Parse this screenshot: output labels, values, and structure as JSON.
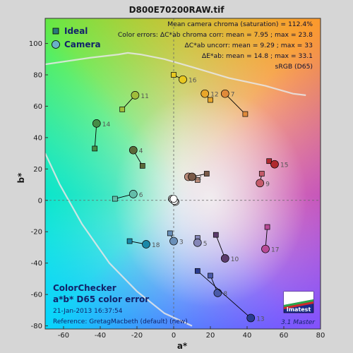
{
  "chart_data": {
    "type": "scatter",
    "title": "D800E70200RAW.tif",
    "xlabel": "a*",
    "ylabel": "b*",
    "xlim": [
      -70,
      80
    ],
    "ylim": [
      -82,
      116
    ],
    "xticks": [
      -60,
      -40,
      -20,
      0,
      20,
      40,
      60,
      80
    ],
    "yticks": [
      -80,
      -60,
      -40,
      -20,
      0,
      20,
      40,
      60,
      80,
      100
    ],
    "grid": false,
    "legend_position": "top-left",
    "series": [
      {
        "name": "Ideal",
        "marker": "square"
      },
      {
        "name": "Camera",
        "marker": "circle"
      }
    ],
    "patches": [
      {
        "id": "1",
        "ideal": [
          13,
          13
        ],
        "camera": [
          8,
          15
        ],
        "color": "#b88a78"
      },
      {
        "id": "2",
        "ideal": [
          18,
          17
        ],
        "camera": [
          10,
          15
        ],
        "color": "#7a5a48"
      },
      {
        "id": "3",
        "ideal": [
          -2,
          -21
        ],
        "camera": [
          0,
          -26
        ],
        "color": "#6a8fb8"
      },
      {
        "id": "4",
        "ideal": [
          -17,
          22
        ],
        "camera": [
          -22,
          32
        ],
        "color": "#5b6a3a"
      },
      {
        "id": "5",
        "ideal": [
          13,
          -24
        ],
        "camera": [
          13,
          -27
        ],
        "color": "#8586b8"
      },
      {
        "id": "6",
        "ideal": [
          -32,
          1
        ],
        "camera": [
          -22,
          4
        ],
        "color": "#63bda9"
      },
      {
        "id": "7",
        "ideal": [
          39,
          55
        ],
        "camera": [
          28,
          68
        ],
        "color": "#e08a3a"
      },
      {
        "id": "8",
        "ideal": [
          20,
          -48
        ],
        "camera": [
          24,
          -59
        ],
        "color": "#4a5aa8"
      },
      {
        "id": "9",
        "ideal": [
          48,
          17
        ],
        "camera": [
          47,
          11
        ],
        "color": "#c45a6a"
      },
      {
        "id": "10",
        "ideal": [
          23,
          -22
        ],
        "camera": [
          28,
          -37
        ],
        "color": "#5c3c6c"
      },
      {
        "id": "11",
        "ideal": [
          -28,
          58
        ],
        "camera": [
          -21,
          67
        ],
        "color": "#a0bd3a"
      },
      {
        "id": "12",
        "ideal": [
          20,
          64
        ],
        "camera": [
          17,
          68
        ],
        "color": "#e8a62a"
      },
      {
        "id": "13",
        "ideal": [
          13,
          -45
        ],
        "camera": [
          42,
          -75
        ],
        "color": "#2a3c90"
      },
      {
        "id": "14",
        "ideal": [
          -43,
          33
        ],
        "camera": [
          -42,
          49
        ],
        "color": "#468c46"
      },
      {
        "id": "15",
        "ideal": [
          52,
          25
        ],
        "camera": [
          55,
          23
        ],
        "color": "#b02a30"
      },
      {
        "id": "16",
        "ideal": [
          0,
          80
        ],
        "camera": [
          5,
          77
        ],
        "color": "#e8c820"
      },
      {
        "id": "17",
        "ideal": [
          51,
          -17
        ],
        "camera": [
          50,
          -31
        ],
        "color": "#b84a96"
      },
      {
        "id": "18",
        "ideal": [
          -24,
          -26
        ],
        "camera": [
          -15,
          -28
        ],
        "color": "#1a88a8"
      }
    ],
    "neutral_points": [
      [
        -1,
        1
      ],
      [
        0,
        0
      ],
      [
        1,
        -1
      ],
      [
        -0.5,
        0.5
      ],
      [
        0.5,
        -0.5
      ],
      [
        0,
        1
      ]
    ],
    "gamut_curves": [
      {
        "name": "sRGB boundary",
        "points": [
          [
            -80,
            85
          ],
          [
            -45,
            91
          ],
          [
            -30,
            93
          ],
          [
            -25,
            94
          ],
          [
            -18,
            93
          ],
          [
            -5,
            90
          ],
          [
            10,
            85
          ],
          [
            30,
            78
          ],
          [
            50,
            73
          ],
          [
            65,
            68
          ],
          [
            72,
            67
          ]
        ]
      },
      {
        "name": "sRGB boundary lower",
        "points": [
          [
            -70,
            30
          ],
          [
            -62,
            10
          ],
          [
            -50,
            -15
          ],
          [
            -35,
            -40
          ],
          [
            -20,
            -58
          ],
          [
            -5,
            -72
          ],
          [
            10,
            -80
          ]
        ]
      }
    ]
  },
  "stats": {
    "line1": "Mean camera chroma (saturation) = 112.4%",
    "line2": "Color errors: ΔC*ab chroma corr:  mean = 7.95 ;  max = 23.8",
    "line3": "ΔC*ab uncorr:  mean = 9.29 ;  max = 33",
    "line4": "ΔE*ab:  mean = 14.8 ;  max = 33.1",
    "line5": "sRGB (D65)"
  },
  "info": {
    "title1": "ColorChecker",
    "title2": "a*b* D65 color error",
    "date": "21-Jan-2013 16:37:54",
    "reference": "Reference:  GretagMacbeth (default) (new)"
  },
  "logo": {
    "text": "Imatest",
    "version": "3.1  Master"
  },
  "colors": {
    "background": "#d6d6d6",
    "text_dark": "#1a1a1a",
    "info_blue": "#12236a",
    "stats_text": "#0f0f30"
  }
}
